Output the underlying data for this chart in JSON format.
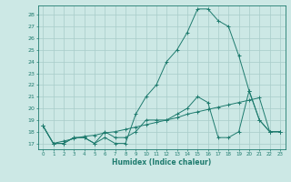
{
  "title": "",
  "xlabel": "Humidex (Indice chaleur)",
  "background_color": "#cce8e5",
  "grid_color": "#a8ccc9",
  "line_color": "#1e7b6e",
  "x_ticks": [
    0,
    1,
    2,
    3,
    4,
    5,
    6,
    7,
    8,
    9,
    10,
    11,
    12,
    13,
    14,
    15,
    16,
    17,
    18,
    19,
    20,
    21,
    22,
    23
  ],
  "y_ticks": [
    17,
    18,
    19,
    20,
    21,
    22,
    23,
    24,
    25,
    26,
    27,
    28
  ],
  "ylim": [
    16.5,
    28.8
  ],
  "xlim": [
    -0.5,
    23.5
  ],
  "series": [
    [
      18.5,
      17.0,
      17.0,
      17.5,
      17.5,
      17.0,
      17.5,
      17.0,
      17.0,
      19.5,
      21.0,
      22.0,
      24.0,
      25.0,
      26.5,
      28.5,
      28.5,
      27.5,
      27.0,
      24.5,
      21.5,
      19.0,
      18.0,
      18.0
    ],
    [
      18.5,
      17.0,
      17.0,
      17.5,
      17.5,
      17.0,
      18.0,
      17.5,
      17.5,
      18.0,
      19.0,
      19.0,
      19.0,
      19.5,
      20.0,
      21.0,
      20.5,
      17.5,
      17.5,
      18.0,
      21.5,
      19.0,
      18.0,
      18.0
    ],
    [
      18.5,
      17.0,
      17.2,
      17.4,
      17.6,
      17.7,
      17.9,
      18.0,
      18.2,
      18.4,
      18.6,
      18.8,
      19.0,
      19.2,
      19.5,
      19.7,
      19.9,
      20.1,
      20.3,
      20.5,
      20.7,
      20.9,
      18.0,
      18.0
    ]
  ]
}
